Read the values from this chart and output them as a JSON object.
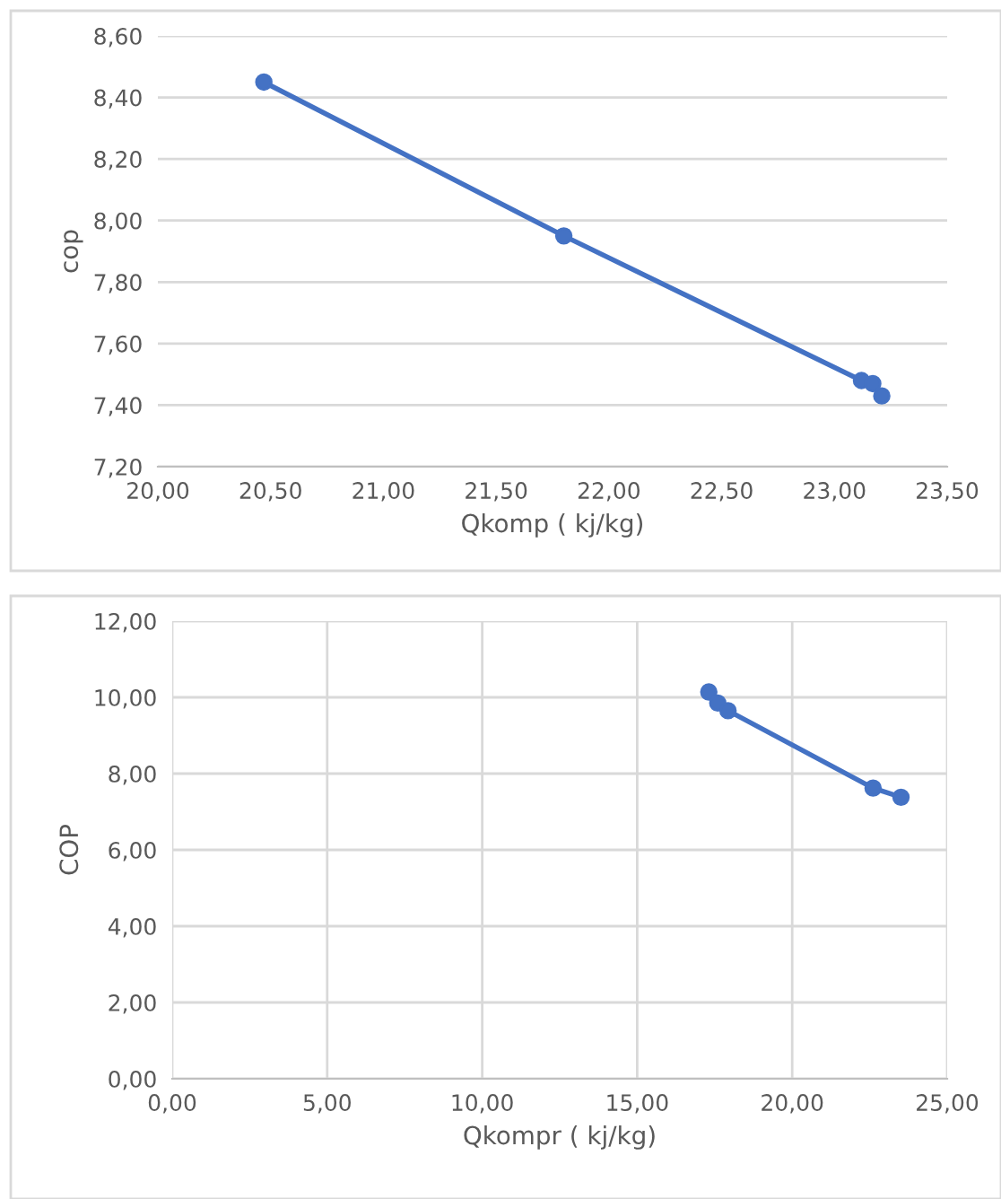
{
  "chart_data": [
    {
      "type": "line",
      "xlabel": "Qkomp ( kj/kg)",
      "ylabel": "cop",
      "marker": "circle",
      "grid": "y",
      "series": [
        {
          "color": "#4472c4",
          "x": [
            20.47,
            21.8,
            23.12,
            23.17,
            23.21
          ],
          "values": [
            8.45,
            7.95,
            7.48,
            7.47,
            7.43
          ]
        }
      ],
      "xlim": [
        20,
        23.5
      ],
      "xticks": [
        {
          "value": 20,
          "label": "20,00"
        },
        {
          "value": 20.5,
          "label": "20,50"
        },
        {
          "value": 21,
          "label": "21,00"
        },
        {
          "value": 21.5,
          "label": "21,50"
        },
        {
          "value": 22,
          "label": "22,00"
        },
        {
          "value": 22.5,
          "label": "22,50"
        },
        {
          "value": 23,
          "label": "23,00"
        },
        {
          "value": 23.5,
          "label": "23,50"
        }
      ],
      "ylim": [
        7.2,
        8.6
      ],
      "yticks": [
        {
          "value": 7.2,
          "label": "7,20"
        },
        {
          "value": 7.4,
          "label": "7,40"
        },
        {
          "value": 7.6,
          "label": "7,60"
        },
        {
          "value": 7.8,
          "label": "7,80"
        },
        {
          "value": 8.0,
          "label": "8,00"
        },
        {
          "value": 8.2,
          "label": "8,20"
        },
        {
          "value": 8.4,
          "label": "8,40"
        },
        {
          "value": 8.6,
          "label": "8,60"
        }
      ]
    },
    {
      "type": "line",
      "xlabel": "Qkompr ( kj/kg)",
      "ylabel": "COP",
      "marker": "circle",
      "grid": true,
      "series": [
        {
          "color": "#4472c4",
          "x": [
            17.31,
            17.6,
            17.93,
            22.61,
            23.51
          ],
          "values": [
            10.14,
            9.85,
            9.65,
            7.62,
            7.38
          ]
        }
      ],
      "xlim": [
        0,
        25
      ],
      "xticks": [
        {
          "value": 0,
          "label": "0,00"
        },
        {
          "value": 5,
          "label": "5,00"
        },
        {
          "value": 10,
          "label": "10,00"
        },
        {
          "value": 15,
          "label": "15,00"
        },
        {
          "value": 20,
          "label": "20,00"
        },
        {
          "value": 25,
          "label": "25,00"
        }
      ],
      "ylim": [
        0,
        12
      ],
      "yticks": [
        {
          "value": 0,
          "label": "0,00"
        },
        {
          "value": 2,
          "label": "2,00"
        },
        {
          "value": 4,
          "label": "4,00"
        },
        {
          "value": 6,
          "label": "6,00"
        },
        {
          "value": 8,
          "label": "8,00"
        },
        {
          "value": 10,
          "label": "10,00"
        },
        {
          "value": 12,
          "label": "12,00"
        }
      ]
    }
  ]
}
